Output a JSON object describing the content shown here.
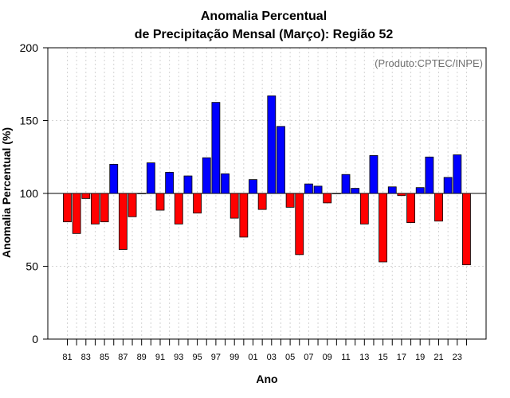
{
  "chart_data": {
    "type": "bar",
    "title": [
      "Anomalia Percentual",
      "de Precipitação Mensal (Março): Região 52"
    ],
    "xlabel": "Ano",
    "ylabel": "Anomalia Percentual (%)",
    "credit": "(Produto:CPTEC/INPE)",
    "ylim": [
      0,
      200
    ],
    "yticks": [
      "0",
      "50",
      "100",
      "150",
      "200"
    ],
    "baseline": 100,
    "grid": true,
    "colors": {
      "above": "#0000ff",
      "below": "#ff0000",
      "gridline": "#d3d3d3"
    },
    "categories": [
      "81",
      "82",
      "83",
      "84",
      "85",
      "86",
      "87",
      "88",
      "89",
      "90",
      "91",
      "92",
      "93",
      "94",
      "95",
      "96",
      "97",
      "98",
      "99",
      "00",
      "01",
      "02",
      "03",
      "04",
      "05",
      "06",
      "07",
      "08",
      "09",
      "10",
      "11",
      "12",
      "13",
      "14",
      "15",
      "16",
      "17",
      "18",
      "19",
      "20",
      "21",
      "22",
      "23",
      "24"
    ],
    "values": [
      80.5,
      72.5,
      96.5,
      79,
      80.5,
      120,
      61.5,
      84,
      100,
      121,
      88.5,
      114.5,
      79,
      112,
      86.5,
      124.5,
      162.5,
      113.5,
      83,
      70,
      109.5,
      89,
      167,
      146,
      90.5,
      58,
      106.5,
      105,
      93.5,
      100,
      113,
      103.5,
      79,
      126,
      53,
      104.5,
      98.5,
      80,
      104,
      125,
      81,
      111,
      126.5,
      51
    ],
    "tick_labels": [
      "81",
      "83",
      "85",
      "87",
      "89",
      "91",
      "93",
      "95",
      "97",
      "99",
      "01",
      "03",
      "05",
      "07",
      "09",
      "11",
      "13",
      "15",
      "17",
      "19",
      "21",
      "23"
    ]
  }
}
